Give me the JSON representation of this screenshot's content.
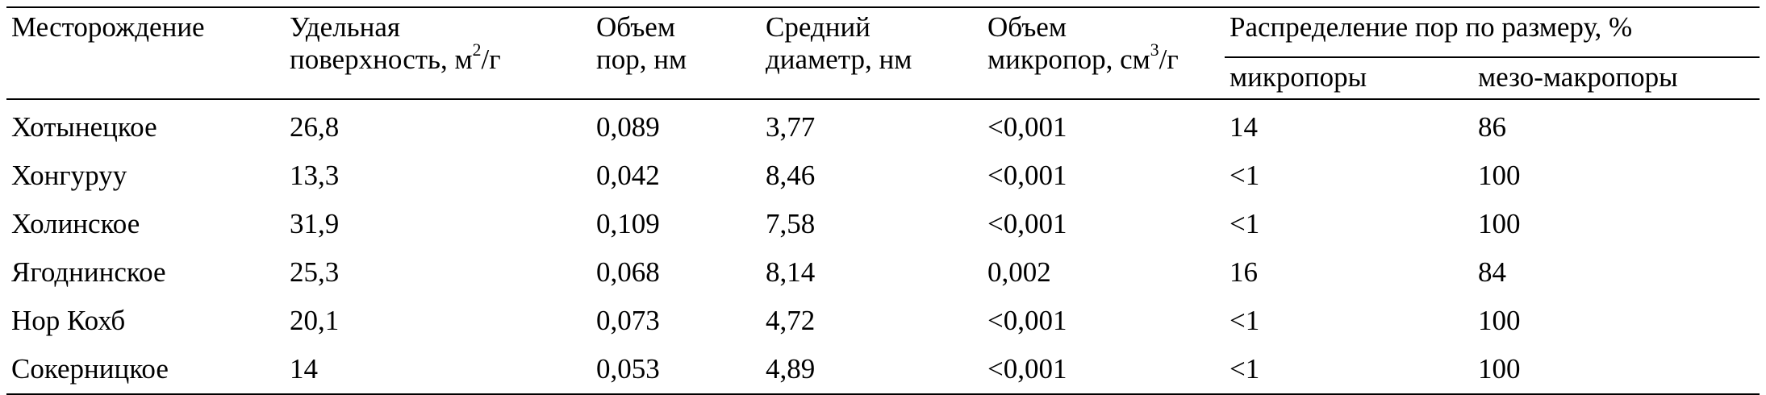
{
  "table": {
    "headers": {
      "deposit": "Месторождение",
      "surface_line1": "Удельная",
      "surface_line2": "поверхность, м",
      "surface_sup": "2",
      "surface_suffix": "/г",
      "pore_volume_line1": "Объем",
      "pore_volume_line2": "пор, нм",
      "avg_diameter_line1": "Средний",
      "avg_diameter_line2": "диаметр, нм",
      "micro_volume_line1": "Объем",
      "micro_volume_line2": "микропор, см",
      "micro_volume_sup": "3",
      "micro_volume_suffix": "/г",
      "distribution": "Распределение пор по размеру, %",
      "micropores": "микропоры",
      "meso_macropores": "мезо-макропоры"
    },
    "rows": [
      {
        "deposit": "Хотынецкое",
        "surface": "26,8",
        "pore_volume": "0,089",
        "avg_diameter": "3,77",
        "micro_volume": "<0,001",
        "micropores": "14",
        "meso_macropores": "86"
      },
      {
        "deposit": "Хонгуруу",
        "surface": "13,3",
        "pore_volume": "0,042",
        "avg_diameter": "8,46",
        "micro_volume": "<0,001",
        "micropores": "<1",
        "meso_macropores": "100"
      },
      {
        "deposit": "Холинское",
        "surface": "31,9",
        "pore_volume": "0,109",
        "avg_diameter": "7,58",
        "micro_volume": "<0,001",
        "micropores": "<1",
        "meso_macropores": "100"
      },
      {
        "deposit": "Ягоднинское",
        "surface": "25,3",
        "pore_volume": "0,068",
        "avg_diameter": "8,14",
        "micro_volume": "0,002",
        "micropores": "16",
        "meso_macropores": "84"
      },
      {
        "deposit": "Нор Кохб",
        "surface": "20,1",
        "pore_volume": "0,073",
        "avg_diameter": "4,72",
        "micro_volume": "<0,001",
        "micropores": "<1",
        "meso_macropores": "100"
      },
      {
        "deposit": "Сокерницкое",
        "surface": "14",
        "pore_volume": "0,053",
        "avg_diameter": "4,89",
        "micro_volume": "<0,001",
        "micropores": "<1",
        "meso_macropores": "100"
      }
    ]
  }
}
